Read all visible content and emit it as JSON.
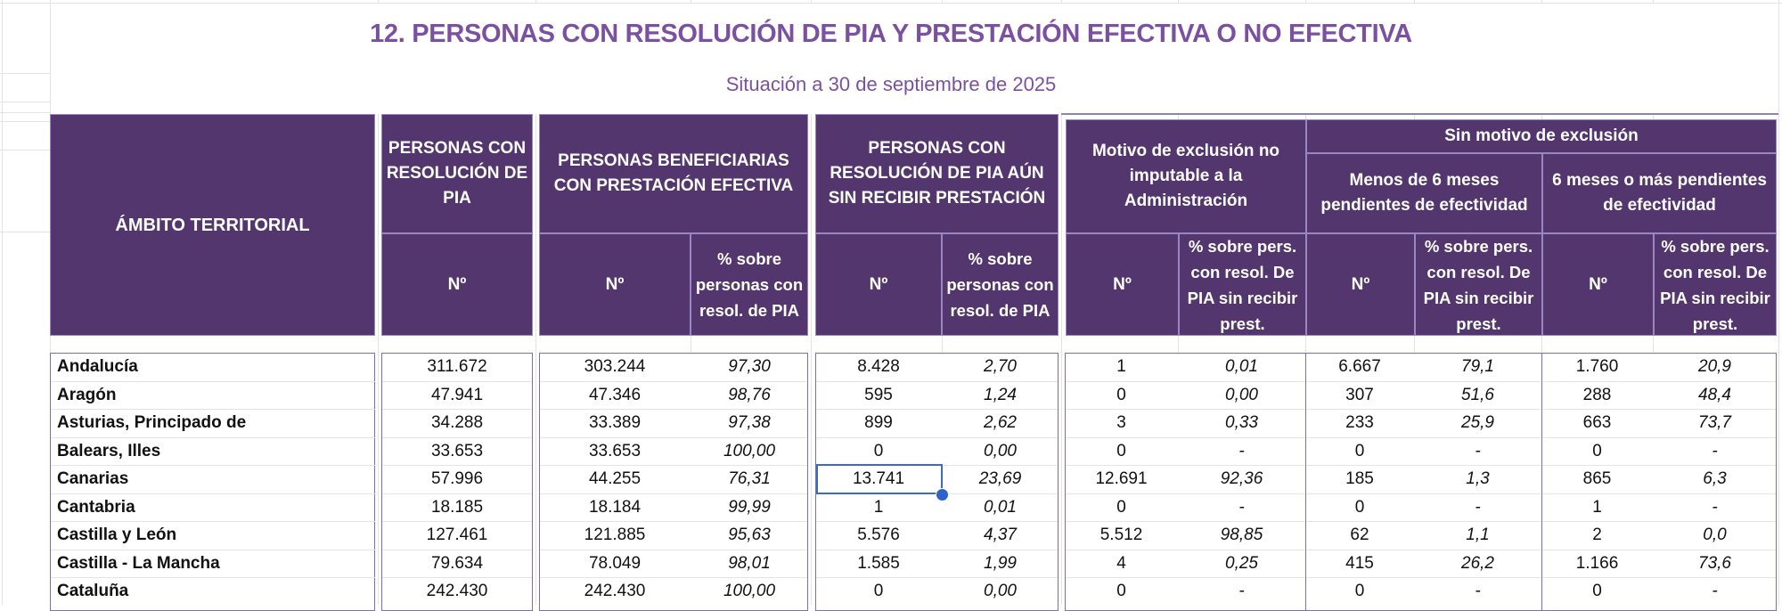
{
  "title": "12. PERSONAS CON RESOLUCIÓN DE PIA Y PRESTACIÓN EFECTIVA O NO EFECTIVA",
  "subtitle": "Situación a 30 de septiembre de 2025",
  "colors": {
    "header_bg": "#53366D",
    "title": "#7B50A0",
    "selection": "#3A6BC9"
  },
  "headers": {
    "ambito": "ÁMBITO TERRITORIAL",
    "pia": "PERSONAS CON RESOLUCIÓN DE PIA",
    "efectiva": "PERSONAS BENEFICIARIAS CON PRESTACIÓN EFECTIVA",
    "sin_recibir": "PERSONAS CON RESOLUCIÓN DE PIA AÚN SIN RECIBIR PRESTACIÓN",
    "motivo": "Motivo de exclusión no imputable a la Administración",
    "sin_motivo": "Sin motivo de exclusión",
    "menos6": "Menos de 6 meses pendientes de efectividad",
    "seis_mas": "6 meses o más pendientes de efectividad",
    "num": "Nº",
    "pct_personas": "% sobre personas con resol. de PIA",
    "pct_pers": "% sobre pers. con resol. De PIA sin recibir prest."
  },
  "selected_cell": {
    "row": 4,
    "column": "sin_recibir_n",
    "value": "13.741"
  },
  "rows": [
    {
      "name": "Andalucía",
      "pia": "311.672",
      "ef_n": "303.244",
      "ef_pct": "97,30",
      "sr_n": "8.428",
      "sr_pct": "2,70",
      "mo_n": "1",
      "mo_pct": "0,01",
      "m6_n": "6.667",
      "m6_pct": "79,1",
      "s6_n": "1.760",
      "s6_pct": "20,9"
    },
    {
      "name": "Aragón",
      "pia": "47.941",
      "ef_n": "47.346",
      "ef_pct": "98,76",
      "sr_n": "595",
      "sr_pct": "1,24",
      "mo_n": "0",
      "mo_pct": "0,00",
      "m6_n": "307",
      "m6_pct": "51,6",
      "s6_n": "288",
      "s6_pct": "48,4"
    },
    {
      "name": "Asturias, Principado de",
      "pia": "34.288",
      "ef_n": "33.389",
      "ef_pct": "97,38",
      "sr_n": "899",
      "sr_pct": "2,62",
      "mo_n": "3",
      "mo_pct": "0,33",
      "m6_n": "233",
      "m6_pct": "25,9",
      "s6_n": "663",
      "s6_pct": "73,7"
    },
    {
      "name": "Balears, Illes",
      "pia": "33.653",
      "ef_n": "33.653",
      "ef_pct": "100,00",
      "sr_n": "0",
      "sr_pct": "0,00",
      "mo_n": "0",
      "mo_pct": "-",
      "m6_n": "0",
      "m6_pct": "-",
      "s6_n": "0",
      "s6_pct": "-"
    },
    {
      "name": "Canarias",
      "pia": "57.996",
      "ef_n": "44.255",
      "ef_pct": "76,31",
      "sr_n": "13.741",
      "sr_pct": "23,69",
      "mo_n": "12.691",
      "mo_pct": "92,36",
      "m6_n": "185",
      "m6_pct": "1,3",
      "s6_n": "865",
      "s6_pct": "6,3"
    },
    {
      "name": "Cantabria",
      "pia": "18.185",
      "ef_n": "18.184",
      "ef_pct": "99,99",
      "sr_n": "1",
      "sr_pct": "0,01",
      "mo_n": "0",
      "mo_pct": "-",
      "m6_n": "0",
      "m6_pct": "-",
      "s6_n": "1",
      "s6_pct": "-"
    },
    {
      "name": "Castilla y León",
      "pia": "127.461",
      "ef_n": "121.885",
      "ef_pct": "95,63",
      "sr_n": "5.576",
      "sr_pct": "4,37",
      "mo_n": "5.512",
      "mo_pct": "98,85",
      "m6_n": "62",
      "m6_pct": "1,1",
      "s6_n": "2",
      "s6_pct": "0,0"
    },
    {
      "name": "Castilla - La Mancha",
      "pia": "79.634",
      "ef_n": "78.049",
      "ef_pct": "98,01",
      "sr_n": "1.585",
      "sr_pct": "1,99",
      "mo_n": "4",
      "mo_pct": "0,25",
      "m6_n": "415",
      "m6_pct": "26,2",
      "s6_n": "1.166",
      "s6_pct": "73,6"
    },
    {
      "name": "Cataluña",
      "pia": "242.430",
      "ef_n": "242.430",
      "ef_pct": "100,00",
      "sr_n": "0",
      "sr_pct": "0,00",
      "mo_n": "0",
      "mo_pct": "-",
      "m6_n": "0",
      "m6_pct": "-",
      "s6_n": "0",
      "s6_pct": "-"
    }
  ]
}
